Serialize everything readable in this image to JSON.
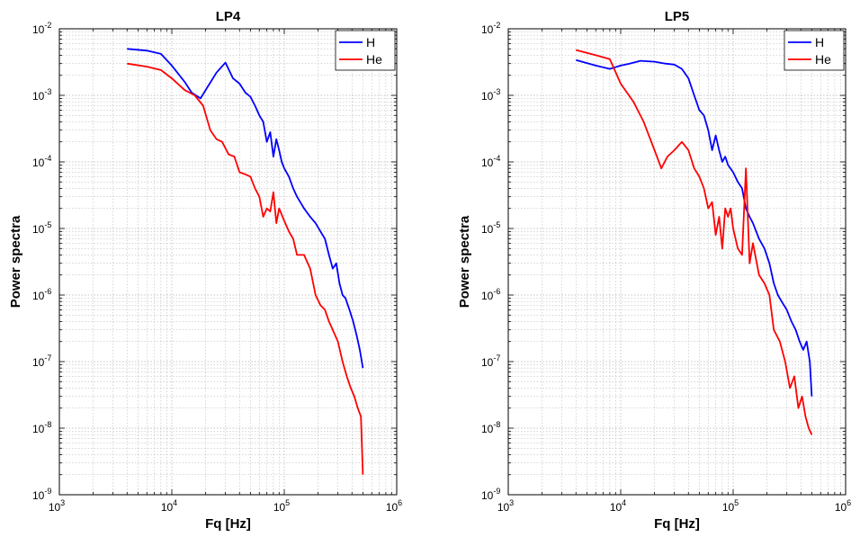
{
  "chart_data": [
    {
      "type": "line",
      "title": "LP4",
      "xlabel": "Fq [Hz]",
      "ylabel": "Power spectra",
      "xscale": "log",
      "yscale": "log",
      "xlim": [
        1000,
        1000000
      ],
      "ylim": [
        1e-09,
        0.01
      ],
      "x_ticks": [
        {
          "base": "10",
          "exp": "3"
        },
        {
          "base": "10",
          "exp": "4"
        },
        {
          "base": "10",
          "exp": "5"
        },
        {
          "base": "10",
          "exp": "6"
        }
      ],
      "y_ticks": [
        {
          "base": "10",
          "exp": "-9"
        },
        {
          "base": "10",
          "exp": "-8"
        },
        {
          "base": "10",
          "exp": "-7"
        },
        {
          "base": "10",
          "exp": "-6"
        },
        {
          "base": "10",
          "exp": "-5"
        },
        {
          "base": "10",
          "exp": "-4"
        },
        {
          "base": "10",
          "exp": "-3"
        },
        {
          "base": "10",
          "exp": "-2"
        }
      ],
      "grid": true,
      "legend": "top-right",
      "series": [
        {
          "name": "H",
          "color": "#0000ff",
          "x": [
            4000,
            6000,
            8000,
            10000,
            13000,
            15000,
            18000,
            20000,
            25000,
            30000,
            35000,
            40000,
            45000,
            50000,
            55000,
            60000,
            65000,
            70000,
            75000,
            80000,
            85000,
            90000,
            95000,
            100000,
            110000,
            120000,
            130000,
            150000,
            170000,
            190000,
            210000,
            230000,
            250000,
            270000,
            290000,
            310000,
            330000,
            350000,
            380000,
            410000,
            440000,
            470000,
            500000
          ],
          "y": [
            0.005,
            0.0047,
            0.0042,
            0.0028,
            0.0016,
            0.0011,
            0.0009,
            0.0012,
            0.0022,
            0.0031,
            0.0018,
            0.0015,
            0.0011,
            0.00095,
            0.0007,
            0.0005,
            0.0004,
            0.0002,
            0.00028,
            0.00012,
            0.00022,
            0.00015,
            0.0001,
            8e-05,
            6e-05,
            4e-05,
            3e-05,
            2e-05,
            1.5e-05,
            1.2e-05,
            9e-06,
            7e-06,
            4e-06,
            2.5e-06,
            3e-06,
            1.5e-06,
            1e-06,
            9e-07,
            6e-07,
            4e-07,
            2.5e-07,
            1.5e-07,
            8e-08
          ]
        },
        {
          "name": "He",
          "color": "#ff0000",
          "x": [
            4000,
            6000,
            8000,
            10000,
            13000,
            16000,
            19000,
            22000,
            25000,
            28000,
            32000,
            36000,
            40000,
            45000,
            50000,
            55000,
            60000,
            65000,
            70000,
            75000,
            80000,
            85000,
            90000,
            100000,
            110000,
            120000,
            130000,
            150000,
            170000,
            190000,
            210000,
            230000,
            250000,
            270000,
            300000,
            330000,
            360000,
            390000,
            420000,
            450000,
            480000,
            500000
          ],
          "y": [
            0.003,
            0.0027,
            0.0024,
            0.0018,
            0.0012,
            0.001,
            0.0007,
            0.0003,
            0.00022,
            0.0002,
            0.00013,
            0.00012,
            7e-05,
            6.5e-05,
            6e-05,
            4e-05,
            3e-05,
            1.5e-05,
            2e-05,
            1.8e-05,
            3.5e-05,
            1.2e-05,
            2e-05,
            1.3e-05,
            9e-06,
            7e-06,
            4e-06,
            4e-06,
            2.5e-06,
            1e-06,
            7e-07,
            6e-07,
            4e-07,
            3e-07,
            2e-07,
            1e-07,
            6e-08,
            4e-08,
            3e-08,
            2e-08,
            1.5e-08,
            2e-09
          ]
        }
      ]
    },
    {
      "type": "line",
      "title": "LP5",
      "xlabel": "Fq [Hz]",
      "ylabel": "Power spectra",
      "xscale": "log",
      "yscale": "log",
      "xlim": [
        1000,
        1000000
      ],
      "ylim": [
        1e-09,
        0.01
      ],
      "x_ticks": [
        {
          "base": "10",
          "exp": "3"
        },
        {
          "base": "10",
          "exp": "4"
        },
        {
          "base": "10",
          "exp": "5"
        },
        {
          "base": "10",
          "exp": "6"
        }
      ],
      "y_ticks": [
        {
          "base": "10",
          "exp": "-9"
        },
        {
          "base": "10",
          "exp": "-8"
        },
        {
          "base": "10",
          "exp": "-7"
        },
        {
          "base": "10",
          "exp": "-6"
        },
        {
          "base": "10",
          "exp": "-5"
        },
        {
          "base": "10",
          "exp": "-4"
        },
        {
          "base": "10",
          "exp": "-3"
        },
        {
          "base": "10",
          "exp": "-2"
        }
      ],
      "grid": true,
      "legend": "top-right",
      "series": [
        {
          "name": "H",
          "color": "#0000ff",
          "x": [
            4000,
            6000,
            8000,
            10000,
            12000,
            15000,
            20000,
            25000,
            30000,
            35000,
            40000,
            45000,
            50000,
            55000,
            60000,
            65000,
            70000,
            75000,
            80000,
            85000,
            90000,
            100000,
            110000,
            120000,
            130000,
            140000,
            150000,
            170000,
            190000,
            210000,
            230000,
            250000,
            270000,
            300000,
            330000,
            360000,
            390000,
            420000,
            450000,
            480000,
            500000
          ],
          "y": [
            0.0034,
            0.0028,
            0.0025,
            0.0028,
            0.003,
            0.0033,
            0.0032,
            0.003,
            0.0029,
            0.0025,
            0.0018,
            0.001,
            0.0006,
            0.0005,
            0.0003,
            0.00015,
            0.00025,
            0.00015,
            0.0001,
            0.00012,
            9e-05,
            7e-05,
            5e-05,
            4e-05,
            2e-05,
            1.5e-05,
            1.2e-05,
            7e-06,
            5e-06,
            3e-06,
            1.5e-06,
            1e-06,
            8e-07,
            6e-07,
            4e-07,
            3e-07,
            2e-07,
            1.5e-07,
            2e-07,
            1e-07,
            3e-08
          ]
        },
        {
          "name": "He",
          "color": "#ff0000",
          "x": [
            4000,
            6000,
            8000,
            10000,
            13000,
            16000,
            20000,
            23000,
            26000,
            30000,
            35000,
            40000,
            45000,
            50000,
            55000,
            60000,
            65000,
            70000,
            75000,
            80000,
            85000,
            90000,
            95000,
            100000,
            110000,
            120000,
            130000,
            140000,
            150000,
            170000,
            190000,
            210000,
            230000,
            260000,
            290000,
            320000,
            350000,
            380000,
            410000,
            440000,
            470000,
            500000
          ],
          "y": [
            0.0048,
            0.004,
            0.0035,
            0.0015,
            0.0008,
            0.0004,
            0.00015,
            8e-05,
            0.00012,
            0.00015,
            0.0002,
            0.00015,
            8e-05,
            6e-05,
            4e-05,
            2e-05,
            2.5e-05,
            8e-06,
            1.5e-05,
            5e-06,
            2e-05,
            1.5e-05,
            2e-05,
            1e-05,
            5e-06,
            4e-06,
            8e-05,
            3e-06,
            6e-06,
            2e-06,
            1.5e-06,
            1e-06,
            3e-07,
            2e-07,
            1e-07,
            4e-08,
            6e-08,
            2e-08,
            3e-08,
            1.5e-08,
            1e-08,
            8e-09
          ]
        }
      ]
    }
  ]
}
